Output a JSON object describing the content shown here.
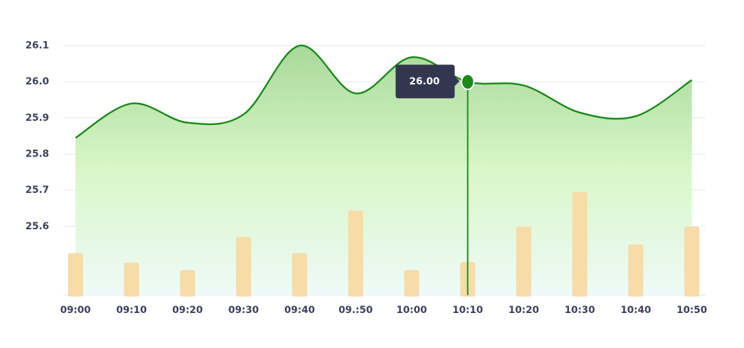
{
  "chart_data": {
    "type": "line",
    "categories": [
      "09:00",
      "09:10",
      "09:20",
      "09:30",
      "09:40",
      "09.:50",
      "10:00",
      "10:10",
      "10:20",
      "10:30",
      "10:40",
      "10:50"
    ],
    "series": [
      {
        "type": "line",
        "color": "#1a8a1a",
        "values": [
          25.845,
          25.94,
          25.887,
          25.91,
          26.1,
          25.968,
          26.068,
          26.0,
          25.99,
          25.915,
          25.905,
          26.005
        ]
      },
      {
        "type": "bar",
        "axis": "y2",
        "color": "#f7dca8",
        "values": [
          62,
          48,
          37,
          86,
          62,
          125,
          37,
          49,
          101,
          152,
          75,
          101
        ]
      }
    ],
    "ylim": [
      25.41,
      26.12
    ],
    "yticks": [
      {
        "value": 25.6,
        "label": "25.6"
      },
      {
        "value": 25.7,
        "label": "25.7"
      },
      {
        "value": 25.8,
        "label": "25.8"
      },
      {
        "value": 25.9,
        "label": "25.9"
      },
      {
        "value": 26.0,
        "label": "26.0"
      },
      26.1
    ],
    "y2lim": [
      0,
      160
    ],
    "grid": true,
    "tooltip": {
      "x": "10:10",
      "label": "26.00"
    }
  }
}
